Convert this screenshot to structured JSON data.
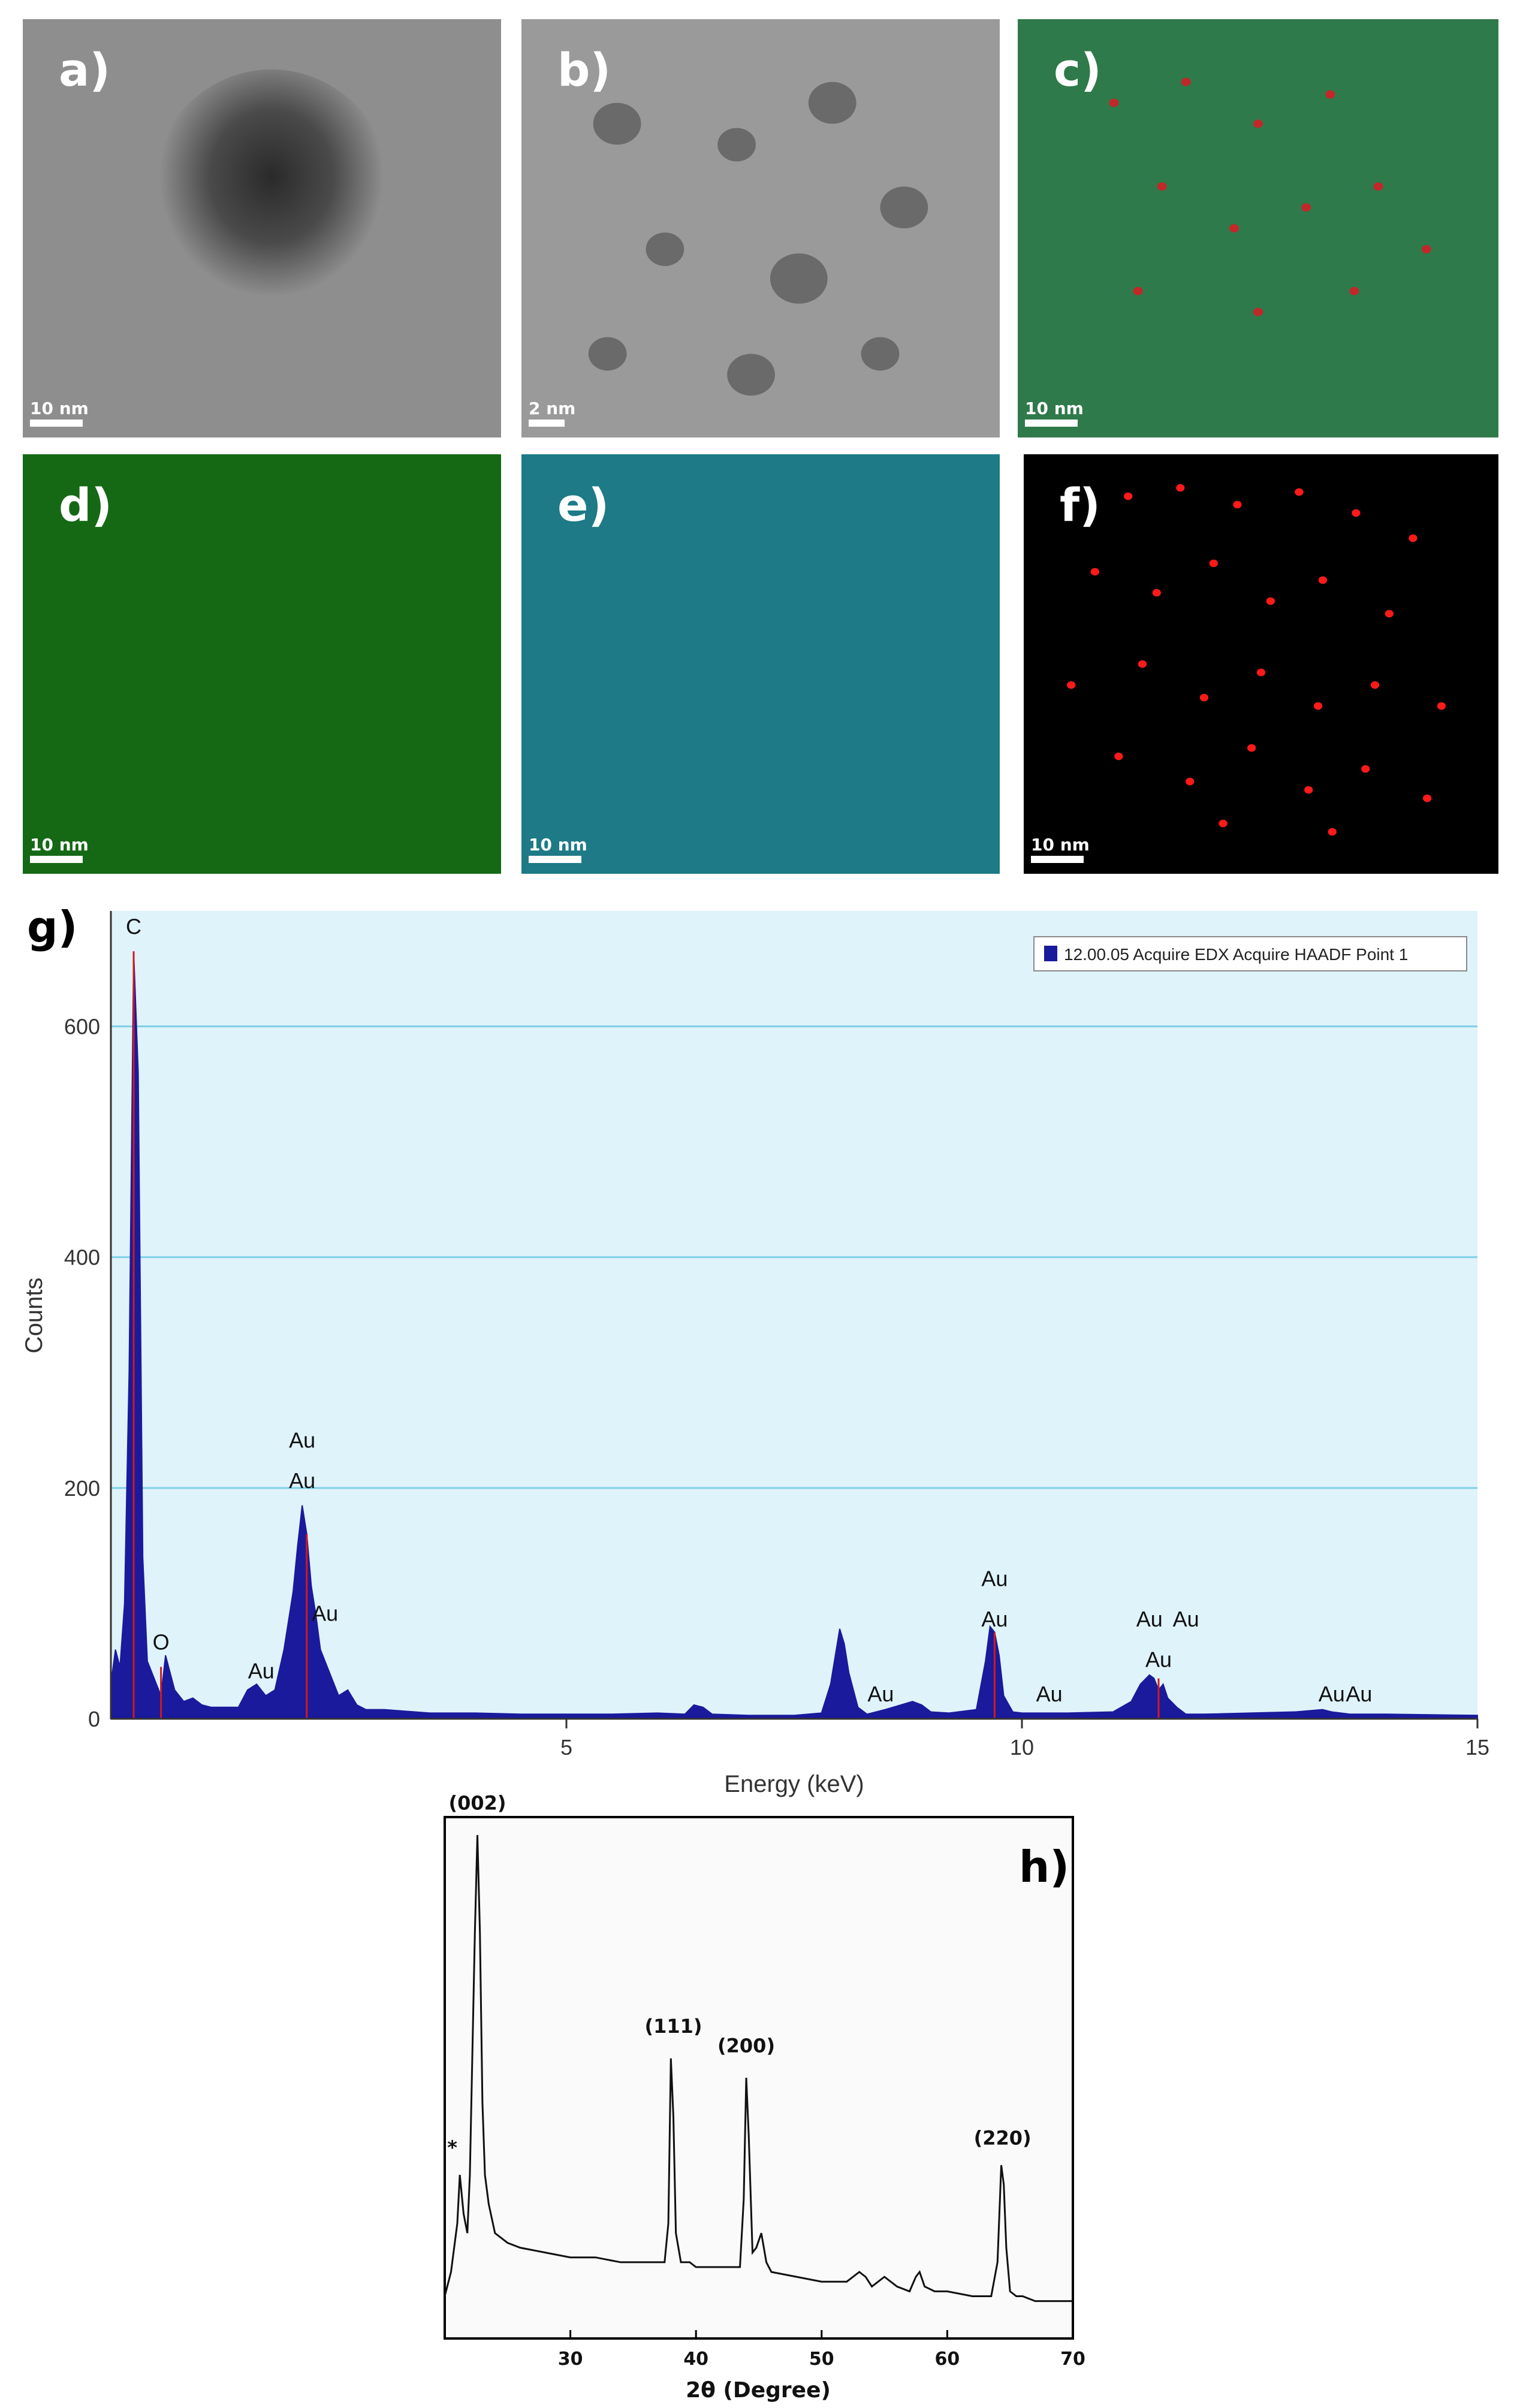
{
  "panels": {
    "a": {
      "label": "a)",
      "scale": "10 nm"
    },
    "b": {
      "label": "b)",
      "scale": "2 nm"
    },
    "c": {
      "label": "c)",
      "scale": "10 nm"
    },
    "d": {
      "label": "d)",
      "scale": "10 nm"
    },
    "e": {
      "label": "e)",
      "scale": "10 nm"
    },
    "f": {
      "label": "f)",
      "scale": "10 nm"
    }
  },
  "colors": {
    "carbon_map": "#1f8f1f",
    "oxygen_map": "#2fb8c8",
    "gold_map": "#ff1a1a"
  },
  "chart_data": [
    {
      "type": "area",
      "panel_label": "g)",
      "legend": "12.00.05 Acquire EDX Acquire HAADF Point 1",
      "legend_position": "top-right",
      "xlabel": "Energy (keV)",
      "ylabel": "Counts",
      "xlim": [
        0,
        15
      ],
      "ylim": [
        0,
        700
      ],
      "xticks": [
        "5",
        "10",
        "15"
      ],
      "yticks": [
        "200",
        "400",
        "600"
      ],
      "grid": "horizontal",
      "colors": {
        "fill": "#1a1a9c",
        "plot_bg": "#dff3fb",
        "grid": "#7fd0e8",
        "peak_marker": "#d11a1a"
      },
      "series": [
        {
          "x": [
            0,
            0.05,
            0.1,
            0.15,
            0.2,
            0.25,
            0.3,
            0.35,
            0.4,
            0.45,
            0.5,
            0.55,
            0.6,
            0.7,
            0.8,
            0.9,
            1.0,
            1.1,
            1.2,
            1.3,
            1.4,
            1.5,
            1.6,
            1.7,
            1.8,
            1.9,
            2.0,
            2.05,
            2.1,
            2.15,
            2.2,
            2.25,
            2.3,
            2.4,
            2.5,
            2.6,
            2.7,
            2.8,
            3.0,
            3.5,
            4.0,
            4.5,
            5.0,
            5.5,
            6.0,
            6.3,
            6.4,
            6.5,
            6.6,
            7.0,
            7.5,
            7.8,
            7.9,
            8.0,
            8.05,
            8.1,
            8.2,
            8.3,
            8.5,
            8.8,
            8.9,
            9.0,
            9.2,
            9.5,
            9.6,
            9.65,
            9.7,
            9.75,
            9.8,
            9.9,
            10.0,
            10.5,
            11.0,
            11.2,
            11.3,
            11.4,
            11.45,
            11.5,
            11.55,
            11.6,
            11.7,
            11.8,
            12.0,
            13.0,
            13.3,
            13.4,
            13.5,
            13.6,
            14.0,
            15.0
          ],
          "y": [
            30,
            60,
            45,
            100,
            300,
            665,
            560,
            140,
            50,
            40,
            30,
            20,
            55,
            25,
            15,
            18,
            12,
            10,
            10,
            10,
            10,
            25,
            30,
            20,
            25,
            60,
            110,
            150,
            185,
            160,
            115,
            90,
            60,
            40,
            20,
            25,
            12,
            8,
            8,
            5,
            5,
            4,
            4,
            4,
            5,
            4,
            12,
            10,
            4,
            3,
            3,
            5,
            30,
            78,
            65,
            40,
            10,
            4,
            8,
            15,
            12,
            6,
            5,
            8,
            50,
            80,
            75,
            55,
            20,
            6,
            5,
            5,
            6,
            15,
            30,
            38,
            35,
            25,
            30,
            18,
            10,
            4,
            4,
            6,
            8,
            6,
            5,
            4,
            4,
            3
          ]
        }
      ],
      "peak_labels": [
        {
          "text": "C",
          "x": 0.25,
          "y": 680
        },
        {
          "text": "O",
          "x": 0.55,
          "y": 60
        },
        {
          "text": "Au",
          "x": 1.65,
          "y": 35
        },
        {
          "text": "Au",
          "x": 2.1,
          "y": 200
        },
        {
          "text": "Au",
          "x": 2.1,
          "y": 235
        },
        {
          "text": "Au",
          "x": 2.35,
          "y": 85
        },
        {
          "text": "Au",
          "x": 8.45,
          "y": 15
        },
        {
          "text": "Au",
          "x": 9.7,
          "y": 80
        },
        {
          "text": "Au",
          "x": 9.7,
          "y": 115
        },
        {
          "text": "Au",
          "x": 10.3,
          "y": 15
        },
        {
          "text": "Au",
          "x": 11.5,
          "y": 45
        },
        {
          "text": "Au",
          "x": 11.4,
          "y": 80
        },
        {
          "text": "Au",
          "x": 11.8,
          "y": 80
        },
        {
          "text": "Au",
          "x": 13.4,
          "y": 15
        },
        {
          "text": "Au",
          "x": 13.7,
          "y": 15
        }
      ]
    },
    {
      "type": "line",
      "panel_label": "h)",
      "xlabel": "2θ (Degree)",
      "ylabel": "",
      "xlim": [
        20,
        70
      ],
      "xticks": [
        "30",
        "40",
        "50",
        "60",
        "70"
      ],
      "grid": false,
      "colors": {
        "line": "#111111"
      },
      "series": [
        {
          "x": [
            20,
            20.5,
            21,
            21.2,
            21.5,
            21.8,
            22,
            22.2,
            22.4,
            22.6,
            22.8,
            23,
            23.2,
            23.5,
            24,
            25,
            26,
            28,
            30,
            32,
            34,
            36,
            37.5,
            37.8,
            38,
            38.2,
            38.4,
            38.8,
            39.5,
            40,
            42,
            43.5,
            43.8,
            44,
            44.2,
            44.5,
            44.8,
            45.2,
            45.6,
            46,
            48,
            50,
            52,
            53,
            53.5,
            54,
            55,
            56,
            57,
            57.5,
            57.8,
            58.2,
            59,
            60,
            62,
            63.5,
            64,
            64.3,
            64.5,
            64.7,
            65,
            65.5,
            66,
            67,
            68,
            69,
            70
          ],
          "y": [
            0.05,
            0.1,
            0.2,
            0.3,
            0.22,
            0.18,
            0.3,
            0.55,
            0.8,
            1.0,
            0.8,
            0.45,
            0.3,
            0.24,
            0.18,
            0.16,
            0.15,
            0.14,
            0.13,
            0.13,
            0.12,
            0.12,
            0.12,
            0.2,
            0.54,
            0.42,
            0.18,
            0.12,
            0.12,
            0.11,
            0.11,
            0.11,
            0.25,
            0.5,
            0.38,
            0.14,
            0.15,
            0.18,
            0.12,
            0.1,
            0.09,
            0.08,
            0.08,
            0.1,
            0.09,
            0.07,
            0.09,
            0.07,
            0.06,
            0.09,
            0.1,
            0.07,
            0.06,
            0.06,
            0.05,
            0.05,
            0.12,
            0.32,
            0.28,
            0.15,
            0.06,
            0.05,
            0.05,
            0.04,
            0.04,
            0.04,
            0.04
          ]
        }
      ],
      "peak_labels": [
        {
          "text": "*",
          "x": 20.6,
          "y": 0.33
        },
        {
          "text": "(002)",
          "x": 22.6,
          "y": 1.04
        },
        {
          "text": "(111)",
          "x": 38.2,
          "y": 0.58
        },
        {
          "text": "(200)",
          "x": 44.0,
          "y": 0.54
        },
        {
          "text": "(220)",
          "x": 64.4,
          "y": 0.35
        }
      ]
    }
  ]
}
